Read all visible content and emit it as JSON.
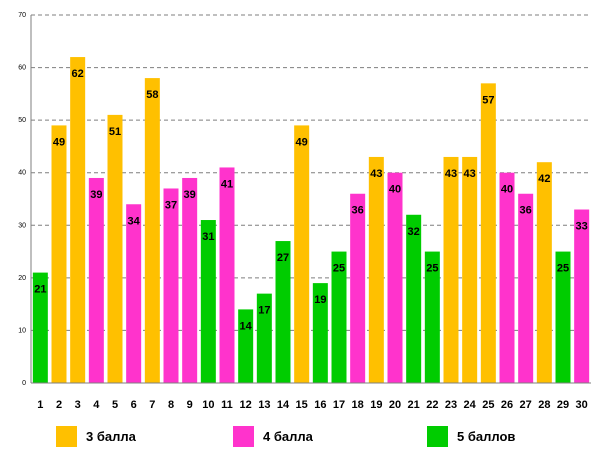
{
  "chart_data": {
    "type": "bar",
    "title": "",
    "xlabel": "",
    "ylabel": "",
    "ylim": [
      0,
      70
    ],
    "yticks": [
      0,
      10,
      20,
      30,
      40,
      50,
      60,
      70
    ],
    "grid": true,
    "legend_position": "bottom",
    "categories": [
      "1",
      "2",
      "3",
      "4",
      "5",
      "6",
      "7",
      "8",
      "9",
      "10",
      "11",
      "12",
      "13",
      "14",
      "15",
      "16",
      "17",
      "18",
      "19",
      "20",
      "21",
      "22",
      "23",
      "24",
      "25",
      "26",
      "27",
      "28",
      "29",
      "30"
    ],
    "values": [
      21,
      49,
      62,
      39,
      51,
      34,
      58,
      37,
      39,
      31,
      41,
      14,
      17,
      27,
      49,
      19,
      25,
      36,
      43,
      40,
      32,
      25,
      43,
      43,
      57,
      40,
      36,
      42,
      25,
      33
    ],
    "groups": [
      "g5",
      "g3",
      "g3",
      "g4",
      "g3",
      "g4",
      "g3",
      "g4",
      "g4",
      "g5",
      "g4",
      "g5",
      "g5",
      "g5",
      "g3",
      "g5",
      "g5",
      "g4",
      "g3",
      "g4",
      "g5",
      "g5",
      "g3",
      "g3",
      "g3",
      "g4",
      "g4",
      "g3",
      "g5",
      "g4"
    ],
    "legend": [
      {
        "key": "g3",
        "label": "3 балла",
        "color": "#FFC000"
      },
      {
        "key": "g4",
        "label": "4 балла",
        "color": "#FF33CC"
      },
      {
        "key": "g5",
        "label": "5 баллов",
        "color": "#00CC00"
      }
    ]
  }
}
